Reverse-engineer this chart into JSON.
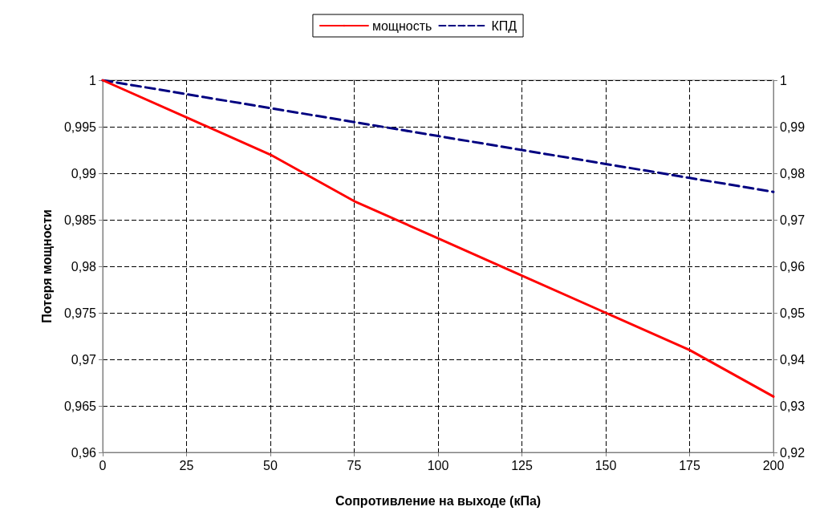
{
  "chart_data": {
    "type": "line",
    "xlabel": "Сопротивление на выходе (кПа)",
    "ylabel": "Потеря мощности",
    "x": [
      0,
      25,
      50,
      75,
      100,
      125,
      150,
      175,
      200
    ],
    "series": [
      {
        "name": "мощность",
        "color": "#ff0000",
        "line_style": "solid",
        "values": [
          1,
          0.996,
          0.992,
          0.987,
          0.983,
          0.979,
          0.975,
          0.971,
          0.966
        ]
      },
      {
        "name": "КПД",
        "color": "#000080",
        "line_style": "dashed",
        "axis": "y2",
        "values": [
          1,
          0.997,
          0.994,
          0.991,
          0.988,
          0.985,
          0.982,
          0.979,
          0.976
        ]
      }
    ],
    "xlim": [
      0,
      200
    ],
    "xticks": [
      0,
      25,
      50,
      75,
      100,
      125,
      150,
      175,
      200
    ],
    "ylim": [
      0.96,
      1
    ],
    "yticks": [
      {
        "value": 0.96,
        "label": "0,96"
      },
      {
        "value": 0.965,
        "label": "0,965"
      },
      {
        "value": 0.97,
        "label": "0,97"
      },
      {
        "value": 0.975,
        "label": "0,975"
      },
      {
        "value": 0.98,
        "label": "0,98"
      },
      {
        "value": 0.985,
        "label": "0,985"
      },
      {
        "value": 0.99,
        "label": "0,99"
      },
      {
        "value": 0.995,
        "label": "0,995"
      },
      {
        "value": 1,
        "label": "1"
      }
    ],
    "y2lim": [
      0.92,
      1
    ],
    "y2ticks": [
      {
        "value": 0.92,
        "label": "0,92"
      },
      {
        "value": 0.93,
        "label": "0,93"
      },
      {
        "value": 0.94,
        "label": "0,94"
      },
      {
        "value": 0.95,
        "label": "0,95"
      },
      {
        "value": 0.96,
        "label": "0,96"
      },
      {
        "value": 0.97,
        "label": "0,97"
      },
      {
        "value": 0.98,
        "label": "0,98"
      },
      {
        "value": 0.99,
        "label": "0,99"
      },
      {
        "value": 1,
        "label": "1"
      }
    ],
    "grid": true,
    "legend": "top",
    "marker": "none"
  }
}
